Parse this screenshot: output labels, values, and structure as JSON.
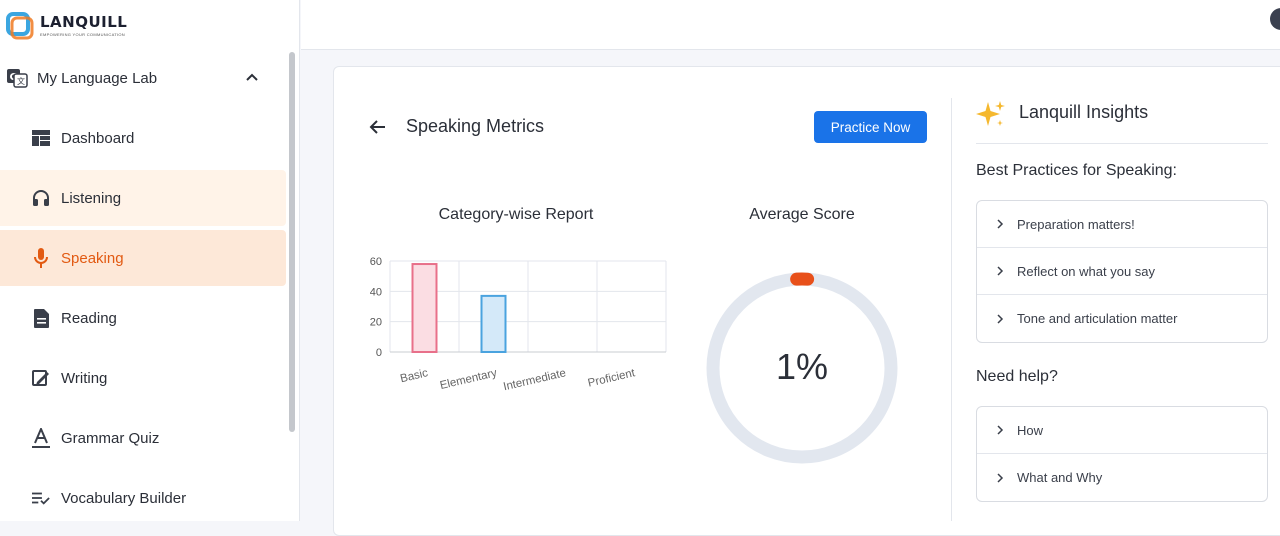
{
  "app": {
    "name": "LANQUILL",
    "tagline": "EMPOWERING YOUR COMMUNICATION"
  },
  "sidebar": {
    "section_label": "My Language Lab",
    "items": [
      {
        "label": "Dashboard",
        "icon": "dashboard-icon"
      },
      {
        "label": "Listening",
        "icon": "headphones-icon"
      },
      {
        "label": "Speaking",
        "icon": "microphone-icon"
      },
      {
        "label": "Reading",
        "icon": "document-icon"
      },
      {
        "label": "Writing",
        "icon": "writing-icon"
      },
      {
        "label": "Grammar Quiz",
        "icon": "text-format-icon"
      },
      {
        "label": "Vocabulary Builder",
        "icon": "checklist-icon"
      }
    ],
    "active_item": "Speaking"
  },
  "main": {
    "title": "Speaking Metrics",
    "practice_button": "Practice Now",
    "average_title": "Average Score",
    "average_value": "1%",
    "average_fraction": 0.01
  },
  "chart_data": {
    "type": "bar",
    "title": "Category-wise Report",
    "categories": [
      "Basic",
      "Elementary",
      "Intermediate",
      "Proficient"
    ],
    "values": [
      58,
      37,
      0,
      0
    ],
    "ylim": [
      0,
      60
    ],
    "yticks": [
      "60",
      "40",
      "20",
      "0"
    ],
    "grid": true
  },
  "insights": {
    "title": "Lanquill Insights",
    "best_practices_heading": "Best Practices for Speaking:",
    "best_practices": [
      "Preparation matters!",
      "Reflect on what you say",
      "Tone and articulation matter"
    ],
    "help_heading": "Need help?",
    "help_items": [
      "How",
      "What and Why"
    ]
  },
  "colors": {
    "accent": "#e25a12",
    "primary": "#1a73e8",
    "bar_basic_fill": "#fbdde3",
    "bar_basic_stroke": "#e8708a",
    "bar_elem_fill": "#d4e9f9",
    "bar_elem_stroke": "#4aa3df",
    "gauge_track": "#e2e7ef",
    "gauge_dot": "#e8501a"
  }
}
